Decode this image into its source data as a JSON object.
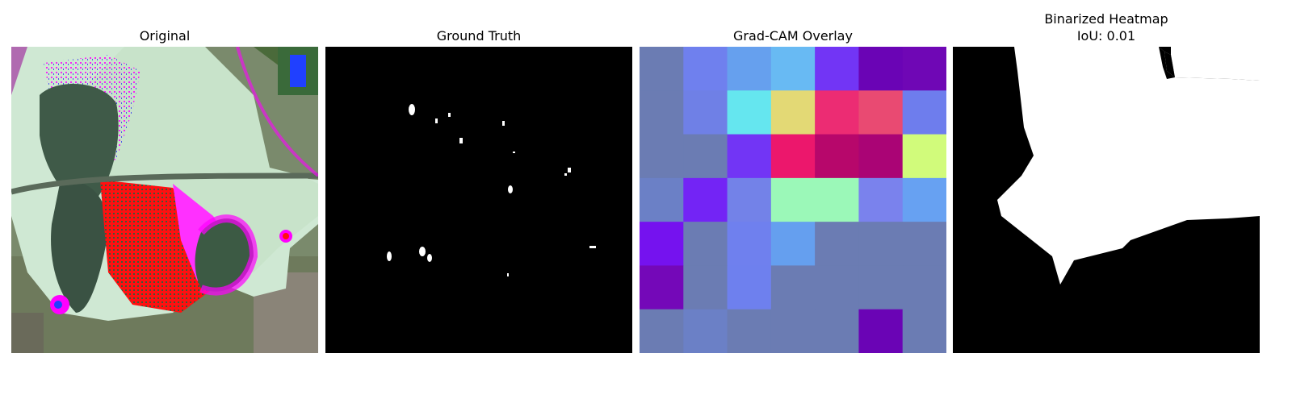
{
  "panels": [
    {
      "title": "Original",
      "image": "leaf-photo"
    },
    {
      "title": "Ground Truth",
      "image": "binary-mask"
    },
    {
      "title": "Grad-CAM Overlay",
      "image": "heatmap-grid"
    },
    {
      "title": "Binarized Heatmap",
      "subtitle": "IoU: 0.01",
      "image": "binarized-heatmap"
    }
  ],
  "gradcam_grid": [
    [
      "#6b7cb3",
      "#6f80ee",
      "#66a0ee",
      "#68baf3",
      "#7235f5",
      "#6a04b5",
      "#6f07b5"
    ],
    [
      "#6b7cb3",
      "#6f80e6",
      "#65e6ef",
      "#e3d975",
      "#ec2c73",
      "#e94a72",
      "#6e7ded"
    ],
    [
      "#6b7cb3",
      "#6b7cb3",
      "#7235f5",
      "#ec176c",
      "#b7076b",
      "#aa0475",
      "#d1fb7b"
    ],
    [
      "#6b80c6",
      "#7324f5",
      "#7382e8",
      "#9bf8b8",
      "#9bf8b8",
      "#7a82ed",
      "#67a1f2"
    ],
    [
      "#7512ef",
      "#6b7cb3",
      "#6f80ee",
      "#659fef",
      "#6b7cb3",
      "#6b7cb3",
      "#6b7cb3"
    ],
    [
      "#7408b8",
      "#6b7cb3",
      "#6e80ee",
      "#6b7cb3",
      "#6b7cb3",
      "#6b7cb3",
      "#6b7cb3"
    ],
    [
      "#6b7cb3",
      "#6b80c6",
      "#6b7cb3",
      "#6b7cb3",
      "#6b7cb3",
      "#6a04b5",
      "#6b7cb3"
    ]
  ]
}
